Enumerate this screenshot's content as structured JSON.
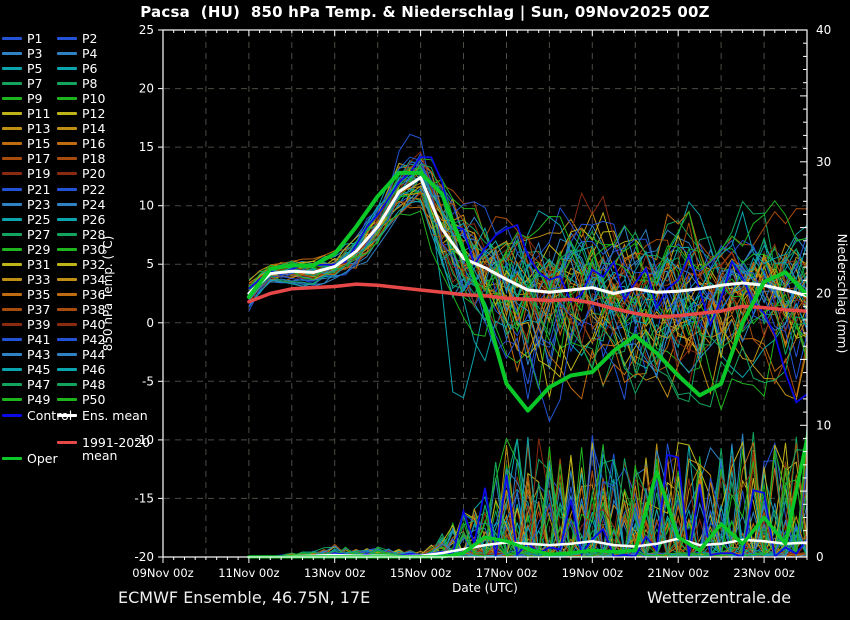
{
  "title": "Pacsa  (HU)  850 hPa Temp. & Niederschlag | Sun, 09Nov2025 00Z",
  "footer": {
    "left": "ECMWF Ensemble, 46.75N, 17E",
    "right": "Wetterzentrale.de"
  },
  "legend": {
    "members": [
      "P1",
      "P2",
      "P3",
      "P4",
      "P5",
      "P6",
      "P7",
      "P8",
      "P9",
      "P10",
      "P11",
      "P12",
      "P13",
      "P14",
      "P15",
      "P16",
      "P17",
      "P18",
      "P19",
      "P20",
      "P21",
      "P22",
      "P23",
      "P24",
      "P25",
      "P26",
      "P27",
      "P28",
      "P29",
      "P30",
      "P31",
      "P32",
      "P33",
      "P34",
      "P35",
      "P36",
      "P37",
      "P38",
      "P39",
      "P40",
      "P41",
      "P42",
      "P43",
      "P44",
      "P45",
      "P46",
      "P47",
      "P48",
      "P49",
      "P50"
    ],
    "palette": [
      "#2353d4",
      "#2e82c4",
      "#0aa4ac",
      "#12a45c",
      "#1eb41e",
      "#bfb31a",
      "#bf8e14",
      "#bf6c10",
      "#a74c0c",
      "#8a2a10"
    ],
    "control": {
      "label": "Control",
      "color": "#0a0ae6"
    },
    "ens_mean": {
      "label": "Ens. mean",
      "color": "#ffffff"
    },
    "climate": {
      "label": "1991-2020",
      "label2": "mean",
      "color": "#e64848"
    },
    "oper": {
      "label": "Oper",
      "color": "#0ac828"
    }
  },
  "chart_data": {
    "type": "line",
    "title": "Pacsa (HU) 850 hPa Temp. & Niederschlag | Sun, 09Nov2025 00Z",
    "xlabel": "Date (UTC)",
    "ylabel_left": "850 hPa Temp. (°C)",
    "ylabel_right": "Niederschlag (mm)",
    "x_tick_labels": [
      "09Nov 00z",
      "11Nov 00z",
      "13Nov 00z",
      "15Nov 00z",
      "17Nov 00z",
      "19Nov 00z",
      "21Nov 00z",
      "23Nov 00z"
    ],
    "left_tick_values": [
      25,
      20,
      15,
      10,
      5,
      0,
      -5,
      -10,
      -15,
      -20
    ],
    "right_tick_values": [
      40,
      30,
      20,
      10,
      0
    ],
    "ylim_left": [
      -20,
      25
    ],
    "ylim_right": [
      0,
      40
    ],
    "x_range_days": [
      0,
      15
    ],
    "data_start": "11Nov 00z",
    "data_start_day": 2,
    "step_hours": 12,
    "grid": "dashed, every 5°C horizontal, every 1 day vertical",
    "series": [
      {
        "name": "Ens. mean 850hPa temp",
        "axis": "left",
        "color": "#ffffff",
        "values": [
          2.5,
          4.2,
          4.4,
          4.3,
          4.8,
          6.1,
          8.2,
          11.2,
          12.4,
          8.0,
          5.5,
          4.7,
          3.7,
          2.8,
          2.6,
          2.8,
          3.0,
          2.5,
          2.9,
          2.6,
          2.7,
          2.9,
          3.2,
          3.4,
          3.2,
          2.8,
          2.3
        ]
      },
      {
        "name": "Oper 850hPa temp",
        "axis": "left",
        "color": "#0ac828",
        "values": [
          2.2,
          4.6,
          4.9,
          4.9,
          5.9,
          8.2,
          10.8,
          12.8,
          12.8,
          11.0,
          6.2,
          1.3,
          -5.2,
          -7.5,
          -5.5,
          -4.5,
          -4.2,
          -2.4,
          -1.1,
          -2.6,
          -4.5,
          -6.2,
          -5.2,
          0.0,
          3.5,
          4.3,
          2.4
        ]
      },
      {
        "name": "1991-2020 mean 850hPa temp",
        "axis": "left",
        "color": "#e64848",
        "values": [
          1.8,
          2.5,
          2.9,
          3.0,
          3.1,
          3.3,
          3.2,
          3.0,
          2.8,
          2.6,
          2.4,
          2.3,
          2.1,
          2.0,
          1.9,
          2.0,
          1.7,
          1.2,
          0.8,
          0.5,
          0.6,
          0.8,
          1.0,
          1.4,
          1.3,
          1.1,
          1.0
        ]
      },
      {
        "name": "Ens. mean precipitation",
        "axis": "right",
        "color": "#ffffff",
        "values": [
          0,
          0,
          0.05,
          0.1,
          0.15,
          0.1,
          0.1,
          0.05,
          0.1,
          0.3,
          0.6,
          0.9,
          1.1,
          1.0,
          0.9,
          1.0,
          1.2,
          0.9,
          0.8,
          1.0,
          1.4,
          0.9,
          1.0,
          1.3,
          1.2,
          1.0,
          1.1
        ]
      },
      {
        "name": "Oper precipitation",
        "axis": "right",
        "color": "#0ac828",
        "values": [
          0,
          0,
          0,
          0,
          0,
          0,
          0,
          0,
          0,
          0,
          0.3,
          1.5,
          1.2,
          0.6,
          0.2,
          0.3,
          0.5,
          0.4,
          0.5,
          6.5,
          1.5,
          0.5,
          2.5,
          1.0,
          3.0,
          1.0,
          9.0
        ]
      }
    ],
    "ensemble": {
      "member_count": 50,
      "seed": 20251109,
      "temp_spread_lo": [
        1.0,
        3.2,
        3.3,
        3.2,
        3.5,
        4.5,
        6.2,
        8.8,
        9.5,
        3.0,
        -0.5,
        -3.0,
        -5.5,
        -7.5,
        -8.0,
        -7.0,
        -6.5,
        -6.2,
        -6.5,
        -7.0,
        -6.5,
        -6.2,
        -7.0,
        -6.0,
        -5.5,
        -6.2,
        -6.8
      ],
      "temp_spread_hi": [
        3.8,
        5.2,
        5.5,
        5.5,
        6.2,
        7.8,
        10.4,
        13.4,
        15.2,
        13.5,
        11.0,
        9.8,
        9.5,
        9.2,
        9.0,
        9.5,
        9.2,
        9.5,
        9.0,
        9.2,
        10.5,
        9.5,
        9.0,
        9.5,
        10.0,
        9.2,
        9.8
      ],
      "precip_spike_max": [
        0,
        0,
        0.3,
        0.6,
        1.0,
        0.6,
        0.8,
        0.6,
        0.5,
        1.8,
        3.5,
        6,
        9,
        10,
        9,
        8.5,
        9.5,
        8,
        7.5,
        9,
        9.5,
        8,
        9,
        10,
        9,
        9,
        10
      ]
    }
  }
}
